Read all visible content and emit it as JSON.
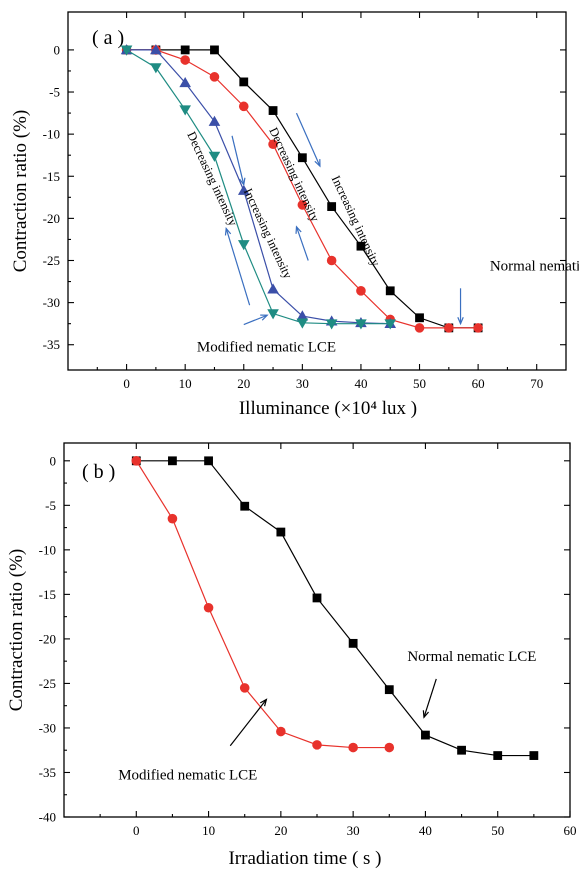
{
  "chart_data": [
    {
      "type": "line",
      "panel_label": "( a )",
      "xlabel": "Illuminance (×10⁴ lux )",
      "ylabel": "Contraction ratio (%)",
      "xlim": [
        -10,
        75
      ],
      "ylim": [
        -38,
        4.5
      ],
      "xticks": [
        0,
        10,
        20,
        30,
        40,
        50,
        60,
        70
      ],
      "yticks": [
        0,
        -5,
        -10,
        -15,
        -20,
        -25,
        -30,
        -35
      ],
      "legend": "none",
      "grid": false,
      "series": [
        {
          "marker": "square",
          "color": "#000000",
          "x": [
            0,
            5,
            10,
            15,
            20,
            25,
            30,
            35,
            40,
            45,
            50,
            55,
            60
          ],
          "y": [
            0,
            0,
            0,
            0,
            -3.8,
            -7.2,
            -12.8,
            -18.6,
            -23.3,
            -28.6,
            -31.8,
            -33,
            -33
          ]
        },
        {
          "marker": "circle",
          "color": "#e8322c",
          "x": [
            0,
            5,
            10,
            15,
            20,
            25,
            30,
            35,
            40,
            45,
            50,
            55,
            60
          ],
          "y": [
            0,
            0,
            -1.2,
            -3.2,
            -6.7,
            -11.2,
            -18.4,
            -25,
            -28.6,
            -32,
            -33,
            -33,
            -33
          ]
        },
        {
          "marker": "triangle-up",
          "color": "#3b4fa8",
          "x": [
            0,
            5,
            10,
            15,
            20,
            25,
            30,
            35,
            40,
            45
          ],
          "y": [
            0,
            0,
            -3.9,
            -8.5,
            -16.7,
            -28.4,
            -31.6,
            -32.2,
            -32.4,
            -32.5
          ]
        },
        {
          "marker": "triangle-down",
          "color": "#1f8c83",
          "x": [
            0,
            5,
            10,
            15,
            20,
            25,
            30,
            35,
            40,
            45
          ],
          "y": [
            0,
            -2.1,
            -7.1,
            -12.6,
            -23.1,
            -31.3,
            -32.4,
            -32.5,
            -32.5,
            -32.5
          ]
        }
      ],
      "annotations": [
        {
          "text": "Normal nematic LCE",
          "x": 62,
          "y": -26.2
        },
        {
          "text": "Modified nematic LCE",
          "x": 12,
          "y": -35.8
        },
        {
          "text": "Increasing intensity",
          "x": 38.5,
          "y": -20.5,
          "rotation": 65
        },
        {
          "text": "Decreasing intensity",
          "x": 28,
          "y": -15,
          "rotation": 65
        },
        {
          "text": "Increasing intensity",
          "x": 23.5,
          "y": -22,
          "rotation": 65
        },
        {
          "text": "Decreasing intensity",
          "x": 14,
          "y": -15.5,
          "rotation": 65
        }
      ]
    },
    {
      "type": "line",
      "panel_label": "( b )",
      "xlabel": "Irradiation time ( s )",
      "ylabel": "Contraction ratio (%)",
      "xlim": [
        -10,
        60
      ],
      "ylim": [
        -40,
        2
      ],
      "xticks": [
        0,
        10,
        20,
        30,
        40,
        50,
        60
      ],
      "yticks": [
        0,
        -5,
        -10,
        -15,
        -20,
        -25,
        -30,
        -35,
        -40
      ],
      "legend": "none",
      "grid": false,
      "series": [
        {
          "marker": "square",
          "color": "#000000",
          "x": [
            0,
            5,
            10,
            15,
            20,
            25,
            30,
            35,
            40,
            45,
            50,
            55
          ],
          "y": [
            0,
            0,
            0,
            -5.1,
            -8,
            -15.4,
            -20.5,
            -25.7,
            -30.8,
            -32.5,
            -33.1,
            -33.1
          ]
        },
        {
          "marker": "circle",
          "color": "#e8322c",
          "x": [
            0,
            5,
            10,
            15,
            20,
            25,
            30,
            35
          ],
          "y": [
            0,
            -6.5,
            -16.5,
            -25.5,
            -30.4,
            -31.9,
            -32.2,
            -32.2
          ]
        }
      ],
      "annotations": [
        {
          "text": "Normal nematic LCE",
          "x": 37.5,
          "y": -22.5
        },
        {
          "text": "Modified nematic LCE",
          "x": -2.5,
          "y": -35.8
        }
      ]
    }
  ]
}
